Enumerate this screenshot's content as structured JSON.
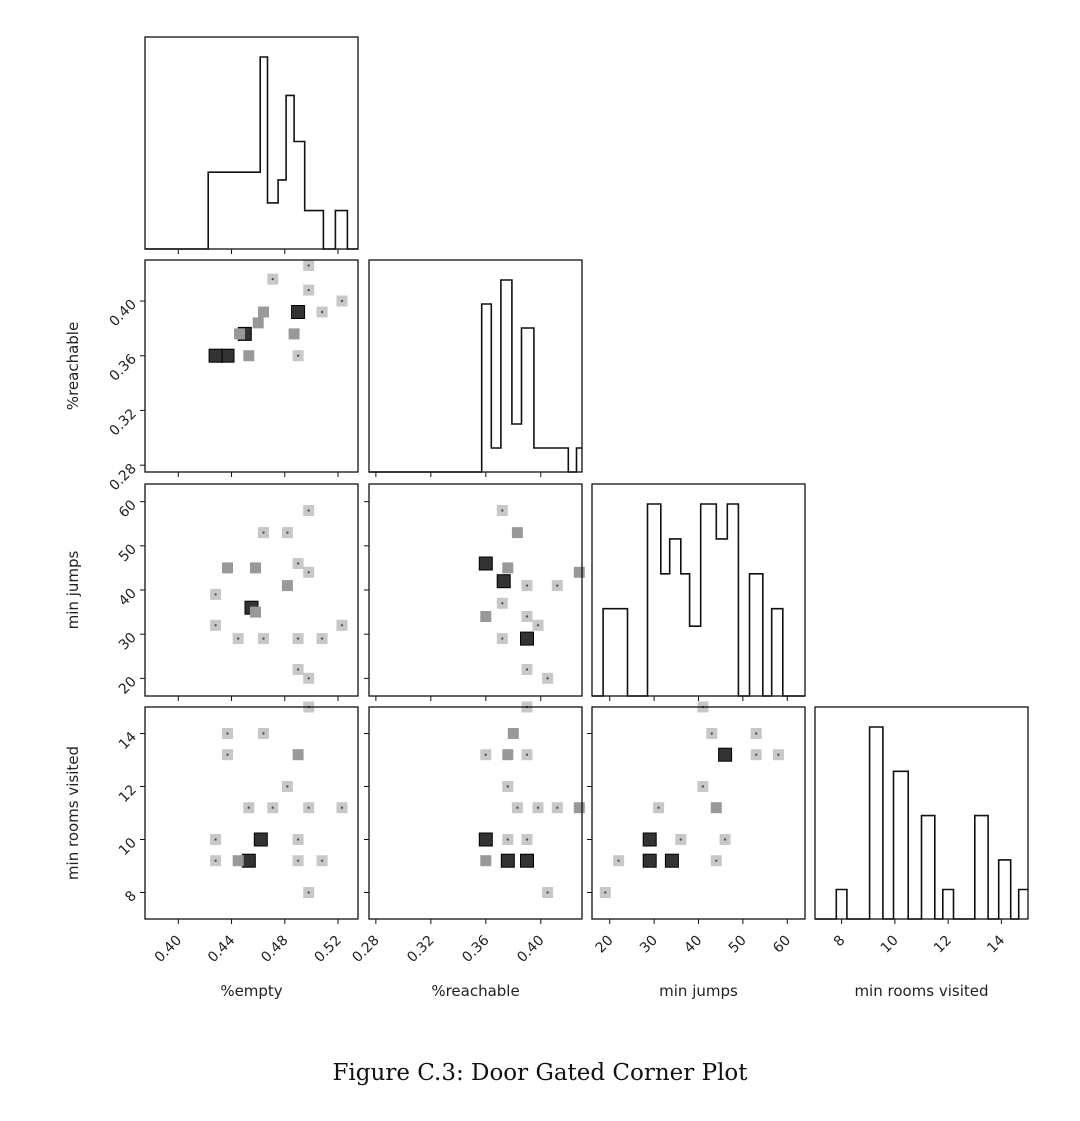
{
  "caption": "Figure C.3: Door Gated Corner Plot",
  "chart_data": {
    "type": "corner",
    "variables": [
      {
        "label": "%empty",
        "range": [
          0.375,
          0.535
        ],
        "ticks": [
          0.4,
          0.44,
          0.48,
          0.52
        ],
        "tick_labels": [
          "0.40",
          "0.44",
          "0.48",
          "0.52"
        ]
      },
      {
        "label": "%reachable",
        "range": [
          0.275,
          0.43
        ],
        "ticks": [
          0.28,
          0.32,
          0.36,
          0.4
        ],
        "tick_labels": [
          "0.28",
          "0.32",
          "0.36",
          "0.40"
        ]
      },
      {
        "label": "min jumps",
        "range": [
          16,
          64
        ],
        "ticks": [
          20,
          30,
          40,
          50,
          60
        ],
        "tick_labels": [
          "20",
          "30",
          "40",
          "50",
          "60"
        ]
      },
      {
        "label": "min rooms visited",
        "range": [
          7,
          15
        ],
        "ticks": [
          8,
          10,
          12,
          14
        ],
        "tick_labels": [
          "8",
          "10",
          "12",
          "14"
        ]
      }
    ],
    "histograms": [
      {
        "variable": "%empty",
        "edges": [
          0.375,
          0.4225,
          0.446,
          0.4615,
          0.467,
          0.475,
          0.481,
          0.487,
          0.495,
          0.509,
          0.518,
          0.527,
          0.535
        ],
        "heights": [
          0,
          1.0,
          1.0,
          2.5,
          0.6,
          0.9,
          2.0,
          1.4,
          0.5,
          0,
          0.5,
          0
        ]
      },
      {
        "variable": "%reachable",
        "edges": [
          0.275,
          0.357,
          0.364,
          0.371,
          0.379,
          0.386,
          0.395,
          0.408,
          0.42,
          0.426,
          0.43
        ],
        "heights": [
          0,
          1.4,
          0.2,
          1.6,
          0.4,
          1.2,
          0.2,
          0.2,
          0,
          0.2
        ]
      },
      {
        "variable": "min jumps",
        "edges": [
          16,
          18.5,
          24,
          28.5,
          31.5,
          33.5,
          36,
          38,
          40.5,
          44,
          46.5,
          49,
          51.5,
          54.5,
          56.5,
          59,
          64
        ],
        "heights": [
          0,
          0.5,
          0,
          1.1,
          0.7,
          0.9,
          0.7,
          0.4,
          1.1,
          0.9,
          1.1,
          0,
          0.7,
          0,
          0.5,
          0
        ]
      },
      {
        "variable": "min rooms visited",
        "edges": [
          7,
          7.8,
          8.2,
          9.05,
          9.55,
          9.95,
          10.5,
          11.0,
          11.5,
          11.8,
          12.2,
          13.0,
          13.5,
          13.9,
          14.35,
          14.65,
          15
        ],
        "heights": [
          0,
          0.2,
          0,
          1.3,
          0,
          1.0,
          0,
          0.7,
          0,
          0.2,
          0,
          0.7,
          0,
          0.4,
          0,
          0.2
        ]
      }
    ],
    "scatter_pairs": [
      {
        "x": "%empty",
        "y": "%reachable",
        "cells": [
          [
            0.498,
            0.426,
            1
          ],
          [
            0.471,
            0.416,
            1
          ],
          [
            0.498,
            0.408,
            1
          ],
          [
            0.523,
            0.4,
            1
          ],
          [
            0.508,
            0.392,
            1
          ],
          [
            0.49,
            0.392,
            3
          ],
          [
            0.464,
            0.392,
            2
          ],
          [
            0.46,
            0.384,
            2
          ],
          [
            0.45,
            0.376,
            3
          ],
          [
            0.446,
            0.376,
            2
          ],
          [
            0.487,
            0.376,
            2
          ],
          [
            0.437,
            0.36,
            3
          ],
          [
            0.453,
            0.36,
            2
          ],
          [
            0.49,
            0.36,
            1
          ],
          [
            0.428,
            0.36,
            3
          ]
        ]
      },
      {
        "x": "%empty",
        "y": "min jumps",
        "cells": [
          [
            0.498,
            58,
            1
          ],
          [
            0.464,
            53,
            1
          ],
          [
            0.482,
            53,
            1
          ],
          [
            0.437,
            45,
            2
          ],
          [
            0.458,
            45,
            2
          ],
          [
            0.49,
            46,
            1
          ],
          [
            0.498,
            44,
            1
          ],
          [
            0.482,
            41,
            2
          ],
          [
            0.428,
            39,
            1
          ],
          [
            0.455,
            36,
            3
          ],
          [
            0.458,
            35,
            2
          ],
          [
            0.428,
            32,
            1
          ],
          [
            0.523,
            32,
            1
          ],
          [
            0.445,
            29,
            1
          ],
          [
            0.464,
            29,
            1
          ],
          [
            0.49,
            29,
            1
          ],
          [
            0.508,
            29,
            1
          ],
          [
            0.49,
            22,
            1
          ],
          [
            0.498,
            20,
            1
          ]
        ]
      },
      {
        "x": "%reachable",
        "y": "min jumps",
        "cells": [
          [
            0.372,
            58,
            1
          ],
          [
            0.383,
            53,
            2
          ],
          [
            0.36,
            46,
            3
          ],
          [
            0.376,
            45,
            2
          ],
          [
            0.373,
            42,
            3
          ],
          [
            0.39,
            41,
            1
          ],
          [
            0.412,
            41,
            1
          ],
          [
            0.428,
            44,
            2
          ],
          [
            0.372,
            37,
            1
          ],
          [
            0.36,
            34,
            2
          ],
          [
            0.39,
            34,
            1
          ],
          [
            0.398,
            32,
            1
          ],
          [
            0.372,
            29,
            1
          ],
          [
            0.39,
            29,
            3
          ],
          [
            0.39,
            22,
            1
          ],
          [
            0.405,
            20,
            1
          ]
        ]
      },
      {
        "x": "%empty",
        "y": "min rooms visited",
        "cells": [
          [
            0.498,
            15,
            1
          ],
          [
            0.437,
            14,
            1
          ],
          [
            0.464,
            14,
            1
          ],
          [
            0.437,
            13.2,
            1
          ],
          [
            0.49,
            13.2,
            2
          ],
          [
            0.482,
            12,
            1
          ],
          [
            0.453,
            11.2,
            1
          ],
          [
            0.471,
            11.2,
            1
          ],
          [
            0.498,
            11.2,
            1
          ],
          [
            0.523,
            11.2,
            1
          ],
          [
            0.428,
            10,
            1
          ],
          [
            0.462,
            10,
            3
          ],
          [
            0.49,
            10,
            1
          ],
          [
            0.428,
            9.2,
            1
          ],
          [
            0.453,
            9.2,
            3
          ],
          [
            0.445,
            9.2,
            2
          ],
          [
            0.49,
            9.2,
            1
          ],
          [
            0.508,
            9.2,
            1
          ],
          [
            0.498,
            8,
            1
          ]
        ]
      },
      {
        "x": "%reachable",
        "y": "min rooms visited",
        "cells": [
          [
            0.39,
            15,
            1
          ],
          [
            0.38,
            14,
            2
          ],
          [
            0.36,
            13.2,
            1
          ],
          [
            0.376,
            13.2,
            2
          ],
          [
            0.39,
            13.2,
            1
          ],
          [
            0.376,
            12,
            1
          ],
          [
            0.383,
            11.2,
            1
          ],
          [
            0.398,
            11.2,
            1
          ],
          [
            0.412,
            11.2,
            1
          ],
          [
            0.428,
            11.2,
            2
          ],
          [
            0.36,
            10,
            3
          ],
          [
            0.376,
            10,
            1
          ],
          [
            0.39,
            10,
            1
          ],
          [
            0.36,
            9.2,
            2
          ],
          [
            0.376,
            9.2,
            3
          ],
          [
            0.39,
            9.2,
            3
          ],
          [
            0.405,
            8,
            1
          ]
        ]
      },
      {
        "x": "min jumps",
        "y": "min rooms visited",
        "cells": [
          [
            41,
            15,
            1
          ],
          [
            43,
            14,
            1
          ],
          [
            53,
            14,
            1
          ],
          [
            46,
            13.2,
            3
          ],
          [
            53,
            13.2,
            1
          ],
          [
            58,
            13.2,
            1
          ],
          [
            41,
            12,
            1
          ],
          [
            31,
            11.2,
            1
          ],
          [
            44,
            11.2,
            2
          ],
          [
            29,
            10,
            3
          ],
          [
            36,
            10,
            1
          ],
          [
            46,
            10,
            1
          ],
          [
            22,
            9.2,
            1
          ],
          [
            29,
            9.2,
            3
          ],
          [
            34,
            9.2,
            3
          ],
          [
            44,
            9.2,
            1
          ],
          [
            19,
            8,
            1
          ]
        ]
      }
    ]
  }
}
